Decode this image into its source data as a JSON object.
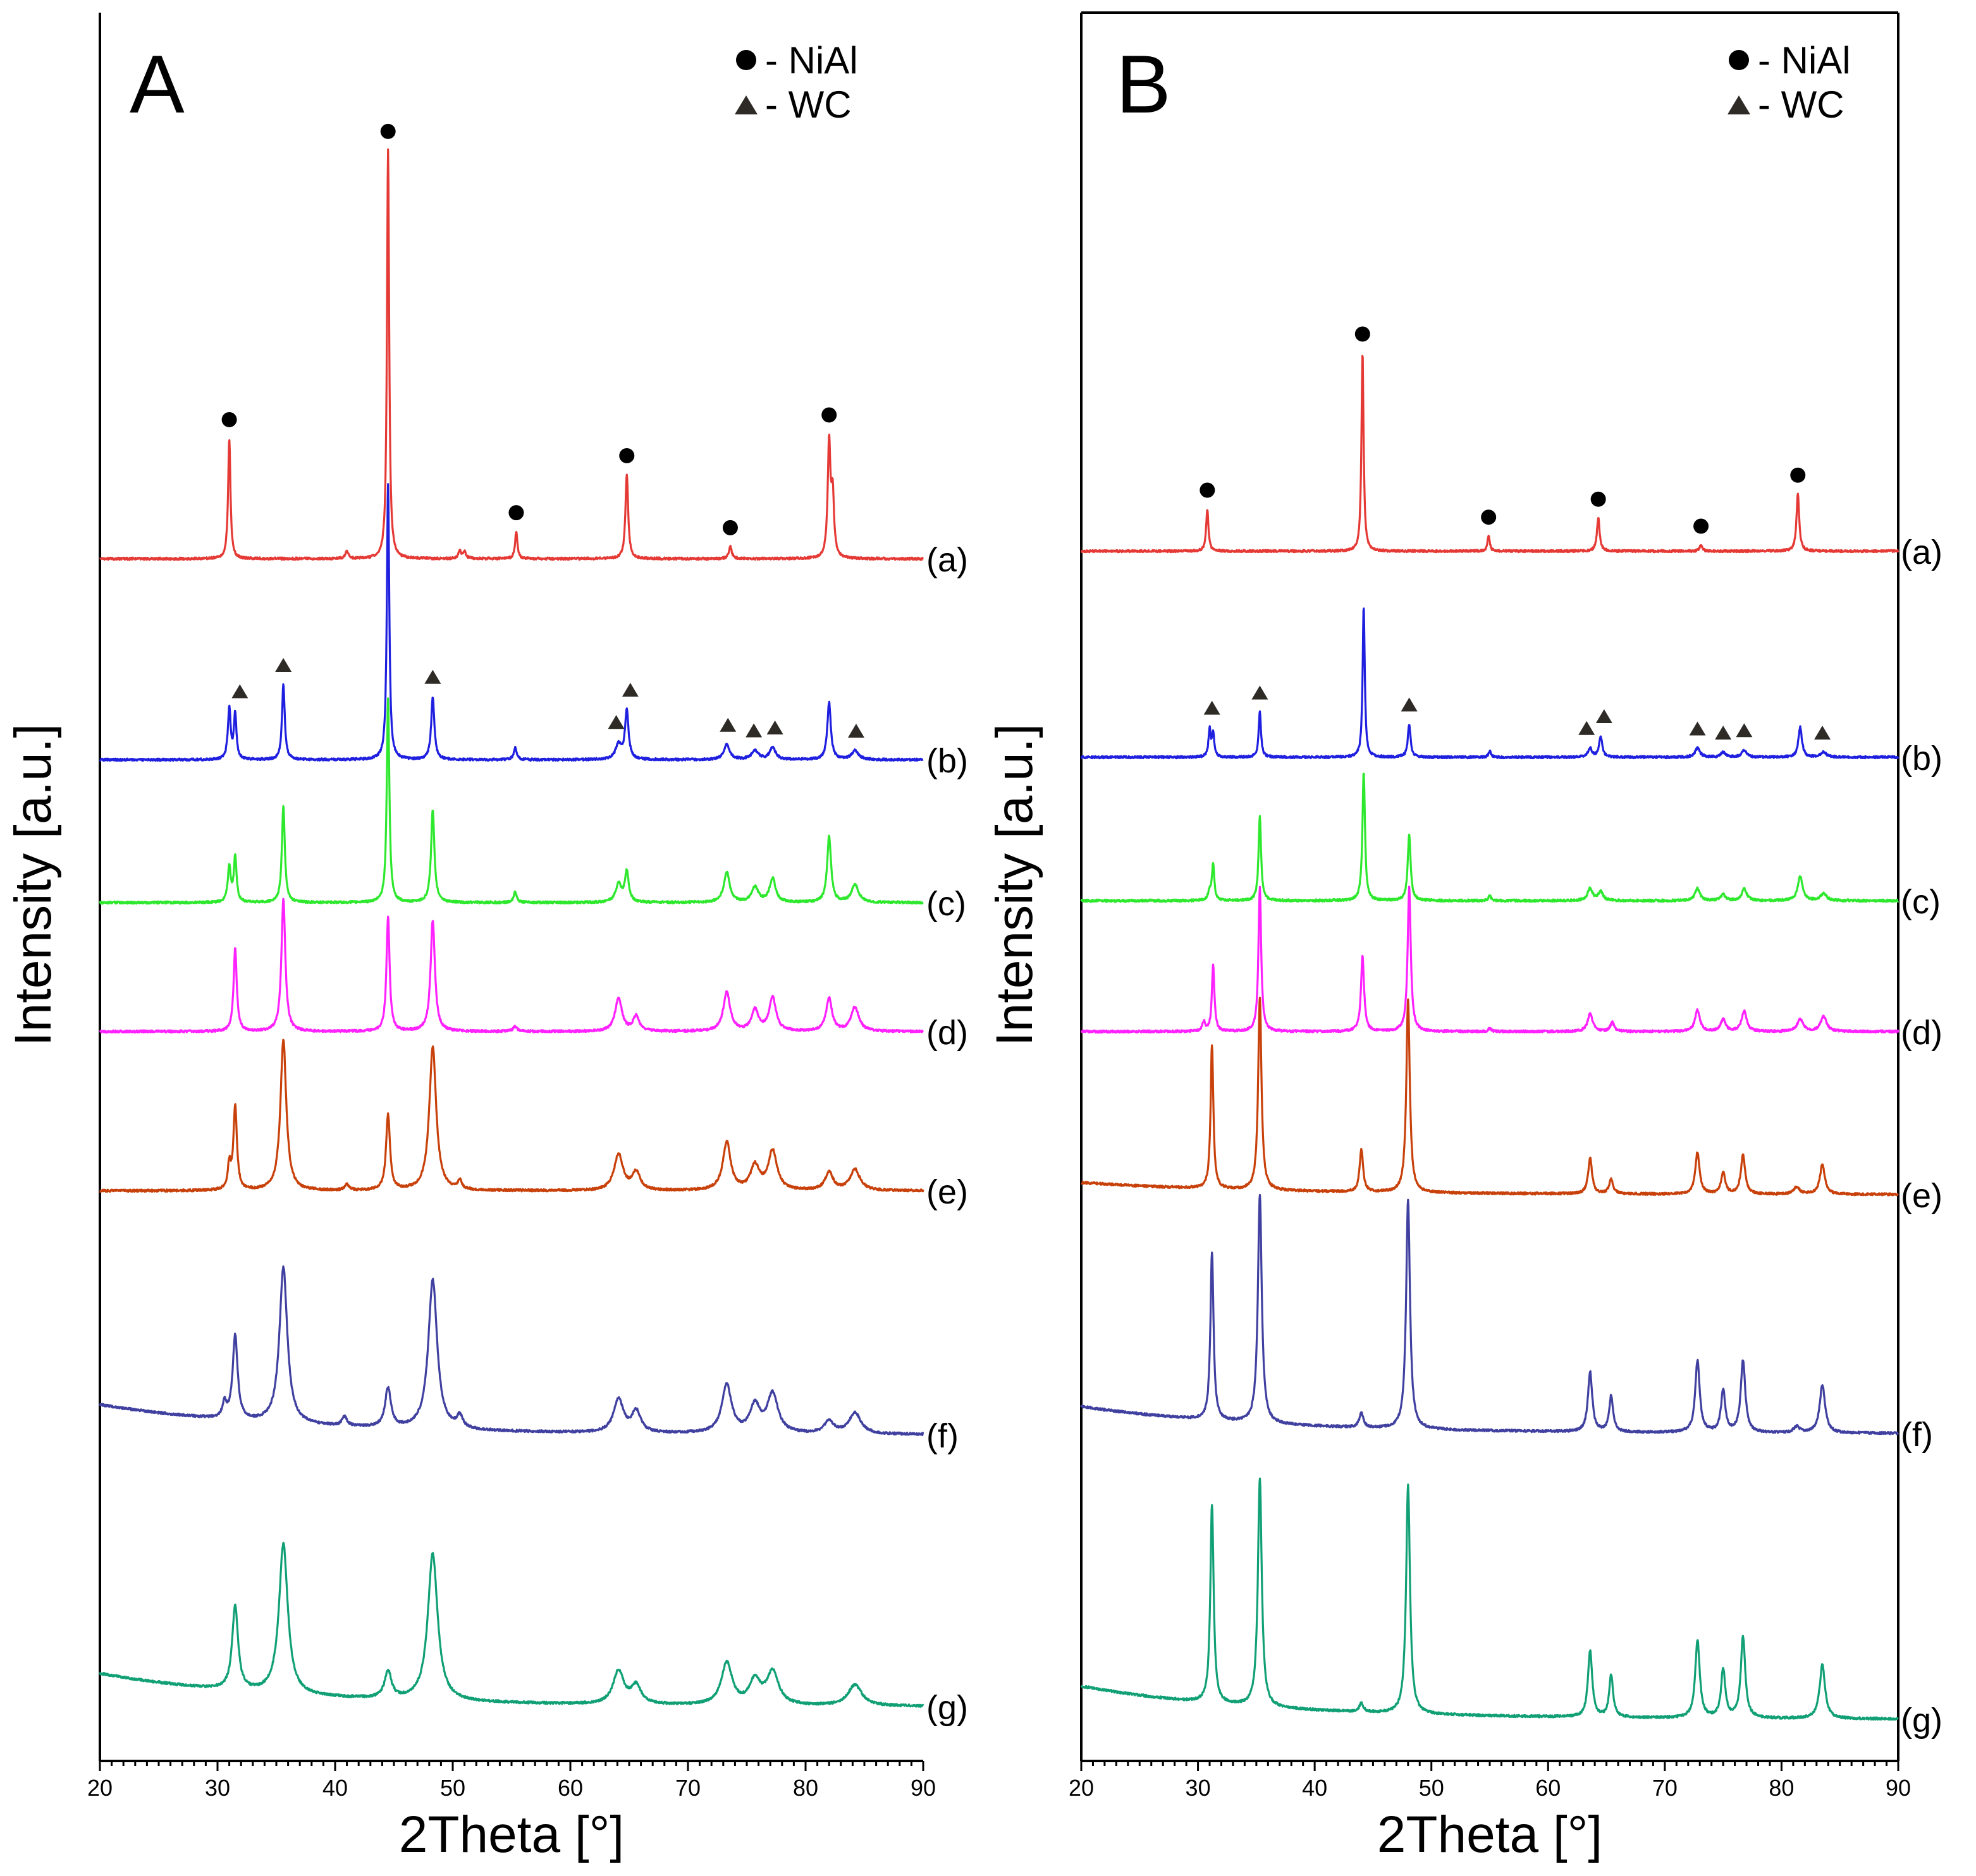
{
  "chart_data": [
    {
      "type": "line",
      "panel": "A",
      "xlabel": "2Theta [°]",
      "ylabel": "Intensity [a.u.]",
      "xlim": [
        20,
        90
      ],
      "xticks": [
        20,
        30,
        40,
        50,
        60,
        70,
        80,
        90
      ],
      "legend": {
        "placement": "top-right",
        "entries": [
          {
            "marker": "circle",
            "label": "- NiAl"
          },
          {
            "marker": "triangle",
            "label": "- WC"
          }
        ]
      },
      "series": [
        {
          "name": "(a)",
          "color": "#e53935",
          "offset": 830,
          "start": 0,
          "end": 0,
          "peaks": [
            [
              31.0,
              200,
              0.12
            ],
            [
              41.0,
              12,
              0.15
            ],
            [
              44.5,
              680,
              0.11
            ],
            [
              50.6,
              12,
              0.15
            ],
            [
              51.0,
              12,
              0.15
            ],
            [
              55.4,
              45,
              0.12
            ],
            [
              64.8,
              140,
              0.14
            ],
            [
              73.6,
              20,
              0.15
            ],
            [
              82.0,
              190,
              0.14
            ],
            [
              82.3,
              100,
              0.14
            ]
          ]
        },
        {
          "name": "(b)",
          "color": "#1f1fe0",
          "offset": 650,
          "start": 0,
          "end": 0,
          "peaks": [
            [
              31.0,
              85,
              0.14
            ],
            [
              31.5,
              75,
              0.13
            ],
            [
              35.6,
              125,
              0.14
            ],
            [
              44.5,
              460,
              0.12
            ],
            [
              48.3,
              105,
              0.16
            ],
            [
              55.3,
              20,
              0.15
            ],
            [
              64.1,
              25,
              0.3
            ],
            [
              64.8,
              80,
              0.18
            ],
            [
              73.3,
              25,
              0.3
            ],
            [
              75.7,
              15,
              0.35
            ],
            [
              77.2,
              20,
              0.3
            ],
            [
              82.0,
              95,
              0.18
            ],
            [
              84.2,
              15,
              0.35
            ]
          ]
        },
        {
          "name": "(c)",
          "color": "#2ee82e",
          "offset": 515,
          "start": 0,
          "end": 0,
          "peaks": [
            [
              31.0,
              60,
              0.15
            ],
            [
              31.5,
              75,
              0.14
            ],
            [
              35.6,
              160,
              0.15
            ],
            [
              44.5,
              340,
              0.13
            ],
            [
              48.3,
              155,
              0.17
            ],
            [
              55.3,
              18,
              0.15
            ],
            [
              64.1,
              30,
              0.3
            ],
            [
              64.8,
              50,
              0.2
            ],
            [
              73.3,
              50,
              0.3
            ],
            [
              75.7,
              25,
              0.35
            ],
            [
              77.2,
              40,
              0.3
            ],
            [
              82.0,
              110,
              0.2
            ],
            [
              84.2,
              30,
              0.35
            ]
          ]
        },
        {
          "name": "(d)",
          "color": "#ff21ff",
          "offset": 390,
          "start": 0,
          "end": 0,
          "peaks": [
            [
              31.5,
              140,
              0.16
            ],
            [
              35.6,
              220,
              0.2
            ],
            [
              44.5,
              190,
              0.16
            ],
            [
              48.3,
              185,
              0.22
            ],
            [
              55.3,
              8,
              0.2
            ],
            [
              64.1,
              55,
              0.35
            ],
            [
              65.6,
              25,
              0.3
            ],
            [
              73.3,
              65,
              0.35
            ],
            [
              75.7,
              35,
              0.35
            ],
            [
              77.2,
              55,
              0.35
            ],
            [
              82.0,
              55,
              0.3
            ],
            [
              84.2,
              40,
              0.4
            ]
          ]
        },
        {
          "name": "(e)",
          "color": "#c8400a",
          "offset": 270,
          "start": 0,
          "end": 0,
          "peaks": [
            [
              31.0,
              40,
              0.15
            ],
            [
              31.5,
              140,
              0.18
            ],
            [
              35.6,
              250,
              0.3
            ],
            [
              41.0,
              10,
              0.2
            ],
            [
              44.5,
              125,
              0.2
            ],
            [
              48.3,
              240,
              0.35
            ],
            [
              50.6,
              15,
              0.2
            ],
            [
              64.1,
              60,
              0.45
            ],
            [
              65.6,
              30,
              0.4
            ],
            [
              73.3,
              80,
              0.4
            ],
            [
              75.7,
              40,
              0.45
            ],
            [
              77.2,
              65,
              0.45
            ],
            [
              82.0,
              30,
              0.4
            ],
            [
              84.2,
              35,
              0.5
            ]
          ]
        },
        {
          "name": "(f)",
          "color": "#4040a0",
          "offset": 140,
          "start": 50,
          "end": 0,
          "peaks": [
            [
              30.6,
              25,
              0.2
            ],
            [
              31.5,
              140,
              0.25
            ],
            [
              35.6,
              260,
              0.4
            ],
            [
              40.8,
              15,
              0.25
            ],
            [
              44.5,
              65,
              0.3
            ],
            [
              48.3,
              250,
              0.45
            ],
            [
              50.6,
              20,
              0.3
            ],
            [
              64.1,
              55,
              0.5
            ],
            [
              65.6,
              35,
              0.45
            ],
            [
              73.3,
              80,
              0.5
            ],
            [
              75.7,
              45,
              0.5
            ],
            [
              77.2,
              65,
              0.55
            ],
            [
              82.0,
              20,
              0.5
            ],
            [
              84.2,
              35,
              0.6
            ]
          ]
        },
        {
          "name": "(g)",
          "color": "#11a075",
          "offset": 0,
          "start": 55,
          "end": 0,
          "peaks": [
            [
              31.5,
              140,
              0.3
            ],
            [
              35.6,
              250,
              0.45
            ],
            [
              44.5,
              45,
              0.35
            ],
            [
              48.3,
              245,
              0.5
            ],
            [
              64.1,
              55,
              0.55
            ],
            [
              65.6,
              30,
              0.5
            ],
            [
              73.3,
              70,
              0.55
            ],
            [
              75.7,
              40,
              0.55
            ],
            [
              77.2,
              55,
              0.6
            ],
            [
              84.2,
              35,
              0.7
            ]
          ]
        }
      ],
      "markers": [
        {
          "series": "(a)",
          "symbol": "circle",
          "x": [
            31.0,
            44.5,
            55.4,
            64.8,
            73.6,
            82.0
          ]
        },
        {
          "series": "(b)",
          "symbol": "triangle",
          "x": [
            31.9,
            35.6,
            48.3,
            63.9,
            65.1,
            73.4,
            75.6,
            77.4,
            84.3
          ]
        }
      ]
    },
    {
      "type": "line",
      "panel": "B",
      "xlabel": "2Theta [°]",
      "ylabel": "Intensity [a.u.]",
      "xlim": [
        20,
        90
      ],
      "xticks": [
        20,
        30,
        40,
        50,
        60,
        70,
        80,
        90
      ],
      "legend": {
        "placement": "top-right",
        "entries": [
          {
            "marker": "circle",
            "label": "- NiAl"
          },
          {
            "marker": "triangle",
            "label": "- WC"
          }
        ]
      },
      "series": [
        {
          "name": "(a)",
          "color": "#e53935",
          "offset": 800,
          "start": 0,
          "end": 0,
          "peaks": [
            [
              30.8,
              70,
              0.12
            ],
            [
              44.1,
              330,
              0.11
            ],
            [
              54.9,
              25,
              0.12
            ],
            [
              64.3,
              55,
              0.14
            ],
            [
              73.1,
              10,
              0.15
            ],
            [
              81.4,
              95,
              0.14
            ]
          ]
        },
        {
          "name": "(b)",
          "color": "#1f1fe0",
          "offset": 640,
          "start": 0,
          "end": 0,
          "peaks": [
            [
              31.0,
              45,
              0.12
            ],
            [
              31.3,
              40,
              0.11
            ],
            [
              35.3,
              75,
              0.12
            ],
            [
              44.2,
              250,
              0.11
            ],
            [
              48.1,
              55,
              0.14
            ],
            [
              55.0,
              10,
              0.12
            ],
            [
              63.6,
              15,
              0.2
            ],
            [
              64.5,
              35,
              0.16
            ],
            [
              72.8,
              15,
              0.25
            ],
            [
              75.0,
              8,
              0.25
            ],
            [
              76.8,
              12,
              0.25
            ],
            [
              81.6,
              50,
              0.18
            ],
            [
              83.6,
              8,
              0.3
            ]
          ]
        },
        {
          "name": "(c)",
          "color": "#2ee82e",
          "offset": 520,
          "start": 0,
          "end": 0,
          "peaks": [
            [
              31.0,
              15,
              0.15
            ],
            [
              31.3,
              60,
              0.12
            ],
            [
              35.3,
              140,
              0.13
            ],
            [
              44.2,
              215,
              0.13
            ],
            [
              48.1,
              110,
              0.15
            ],
            [
              55.0,
              8,
              0.15
            ],
            [
              63.6,
              20,
              0.25
            ],
            [
              64.5,
              15,
              0.25
            ],
            [
              72.8,
              20,
              0.25
            ],
            [
              75.0,
              10,
              0.25
            ],
            [
              76.8,
              20,
              0.25
            ],
            [
              81.6,
              40,
              0.25
            ],
            [
              83.6,
              12,
              0.3
            ]
          ]
        },
        {
          "name": "(d)",
          "color": "#ff21ff",
          "offset": 395,
          "start": 0,
          "end": 0,
          "peaks": [
            [
              30.5,
              15,
              0.15
            ],
            [
              31.3,
              110,
              0.13
            ],
            [
              35.3,
              240,
              0.14
            ],
            [
              44.1,
              125,
              0.16
            ],
            [
              48.1,
              240,
              0.16
            ],
            [
              55.0,
              5,
              0.15
            ],
            [
              63.6,
              30,
              0.25
            ],
            [
              65.5,
              15,
              0.2
            ],
            [
              72.8,
              35,
              0.25
            ],
            [
              75.0,
              20,
              0.25
            ],
            [
              76.8,
              35,
              0.25
            ],
            [
              81.6,
              20,
              0.3
            ],
            [
              83.6,
              25,
              0.3
            ]
          ]
        },
        {
          "name": "(e)",
          "color": "#c8400a",
          "offset": 270,
          "start": 20,
          "end": 0,
          "peaks": [
            [
              31.2,
              240,
              0.14
            ],
            [
              35.3,
              320,
              0.17
            ],
            [
              44.0,
              70,
              0.18
            ],
            [
              48.0,
              320,
              0.18
            ],
            [
              63.6,
              60,
              0.2
            ],
            [
              65.4,
              25,
              0.2
            ],
            [
              72.8,
              70,
              0.22
            ],
            [
              75.0,
              35,
              0.22
            ],
            [
              76.7,
              65,
              0.22
            ],
            [
              81.3,
              12,
              0.3
            ],
            [
              83.5,
              50,
              0.25
            ]
          ]
        },
        {
          "name": "(f)",
          "color": "#4040a0",
          "offset": 130,
          "start": 45,
          "end": 0,
          "peaks": [
            [
              31.2,
              280,
              0.16
            ],
            [
              35.3,
              380,
              0.2
            ],
            [
              44.0,
              25,
              0.2
            ],
            [
              48.0,
              380,
              0.2
            ],
            [
              63.6,
              100,
              0.22
            ],
            [
              65.4,
              60,
              0.2
            ],
            [
              72.8,
              120,
              0.23
            ],
            [
              75.0,
              70,
              0.22
            ],
            [
              76.7,
              120,
              0.23
            ],
            [
              81.3,
              10,
              0.3
            ],
            [
              83.5,
              80,
              0.28
            ]
          ]
        },
        {
          "name": "(g)",
          "color": "#11a075",
          "offset": 0,
          "start": 55,
          "end": 0,
          "peaks": [
            [
              31.2,
              330,
              0.17
            ],
            [
              35.3,
              380,
              0.2
            ],
            [
              44.0,
              15,
              0.2
            ],
            [
              48.0,
              380,
              0.2
            ],
            [
              63.6,
              110,
              0.22
            ],
            [
              65.4,
              70,
              0.2
            ],
            [
              72.8,
              130,
              0.23
            ],
            [
              75.0,
              80,
              0.22
            ],
            [
              76.7,
              135,
              0.23
            ],
            [
              83.5,
              90,
              0.28
            ]
          ]
        }
      ],
      "markers": [
        {
          "series": "(a)",
          "symbol": "circle",
          "x": [
            30.8,
            44.1,
            54.9,
            64.3,
            73.1,
            81.4
          ]
        },
        {
          "series": "(b)",
          "symbol": "triangle",
          "x": [
            31.2,
            35.3,
            48.1,
            63.3,
            64.8,
            72.8,
            75.0,
            76.8,
            83.5
          ]
        }
      ]
    }
  ]
}
